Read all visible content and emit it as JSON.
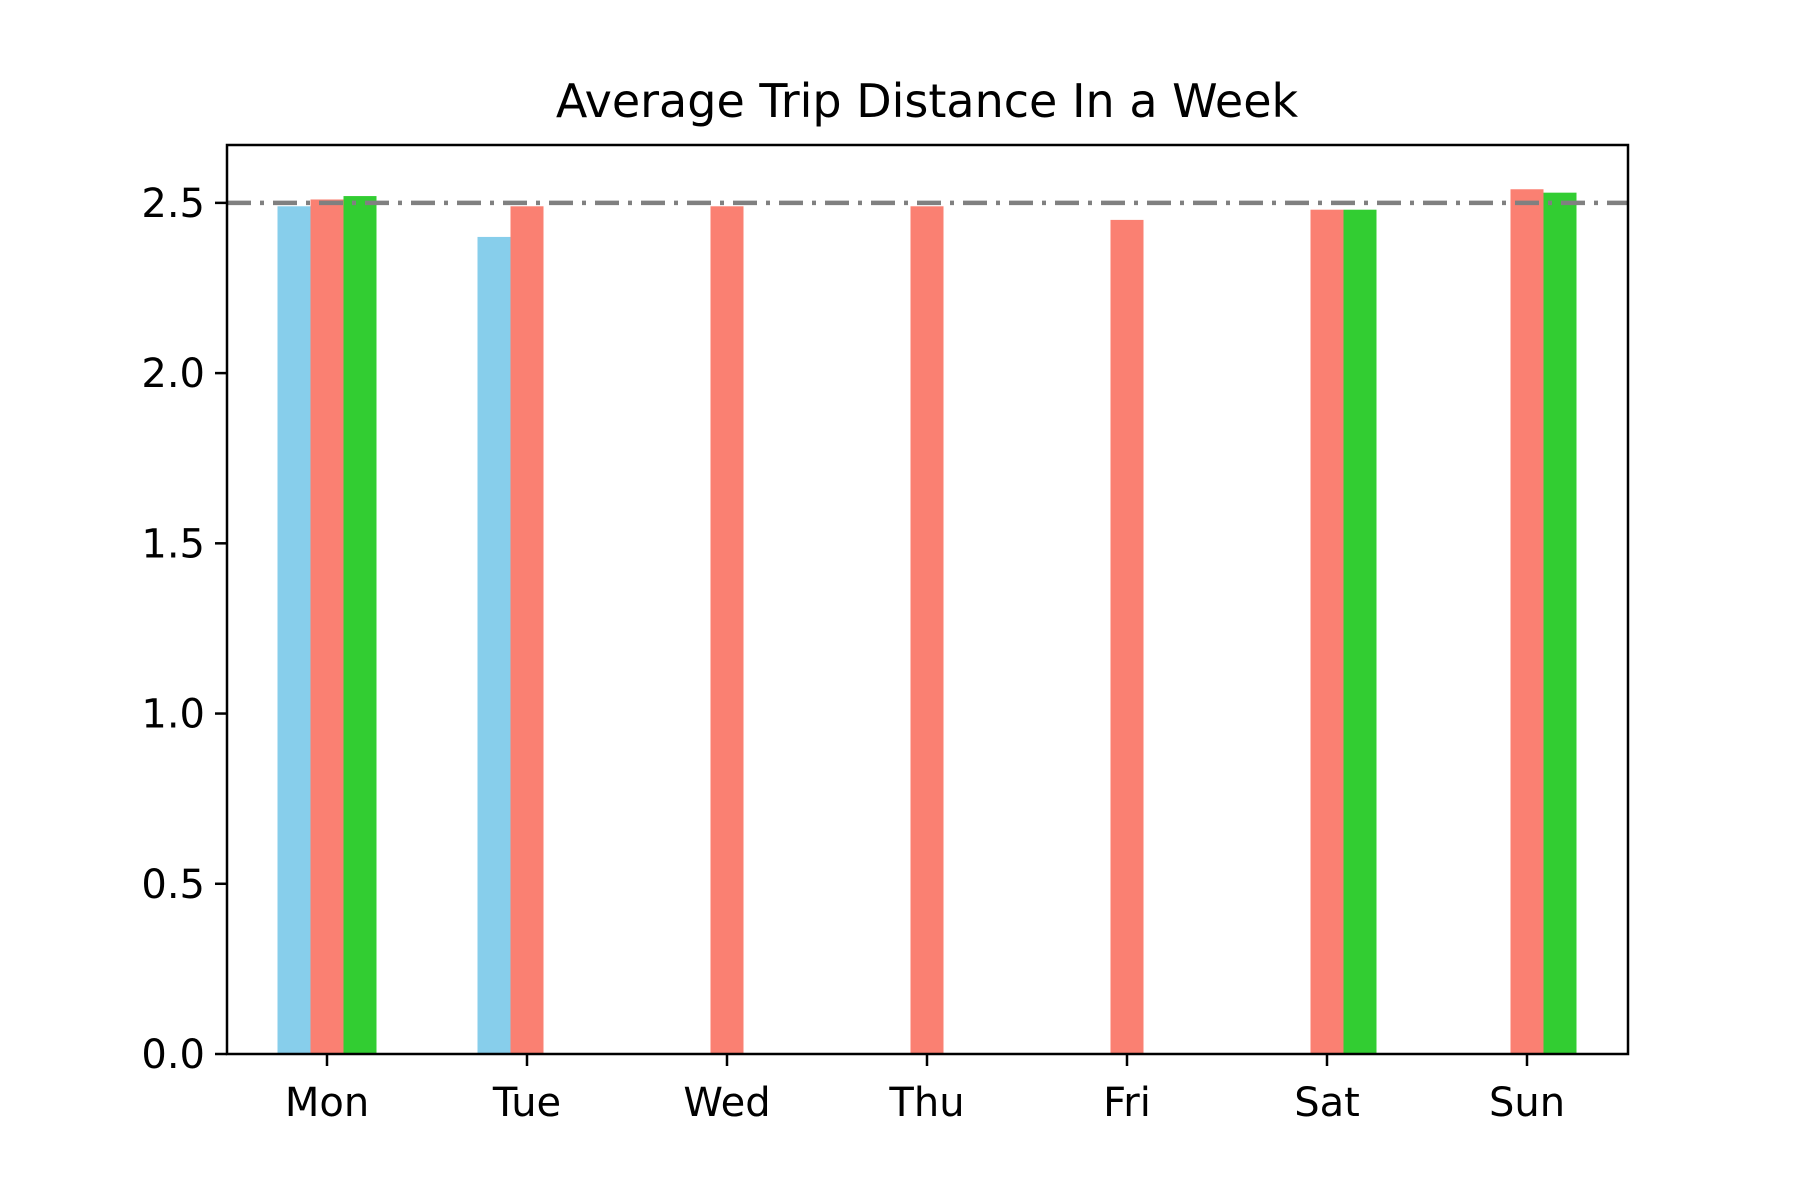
{
  "chart_data": {
    "type": "bar",
    "title": "Average Trip Distance In a Week",
    "xlabel": "",
    "ylabel": "",
    "categories": [
      "Mon",
      "Tue",
      "Wed",
      "Thu",
      "Fri",
      "Sat",
      "Sun"
    ],
    "ylim": [
      0,
      2.67
    ],
    "yticks": [
      "0.0",
      "0.5",
      "1.0",
      "1.5",
      "2.0",
      "2.5"
    ],
    "ytick_values": [
      0,
      0.5,
      1.0,
      1.5,
      2.0,
      2.5
    ],
    "grid": false,
    "legend": "none",
    "series": [
      {
        "color": "#87CEEB",
        "values": [
          2.49,
          2.4,
          null,
          null,
          null,
          null,
          null
        ]
      },
      {
        "color": "#FA8072",
        "values": [
          2.51,
          2.49,
          2.49,
          2.49,
          2.45,
          2.48,
          2.54
        ]
      },
      {
        "color": "#32CD32",
        "values": [
          2.52,
          null,
          null,
          null,
          null,
          2.48,
          2.53
        ]
      }
    ],
    "reference_line": {
      "value": 2.5,
      "style": "dashdot",
      "color": "#808080"
    }
  }
}
